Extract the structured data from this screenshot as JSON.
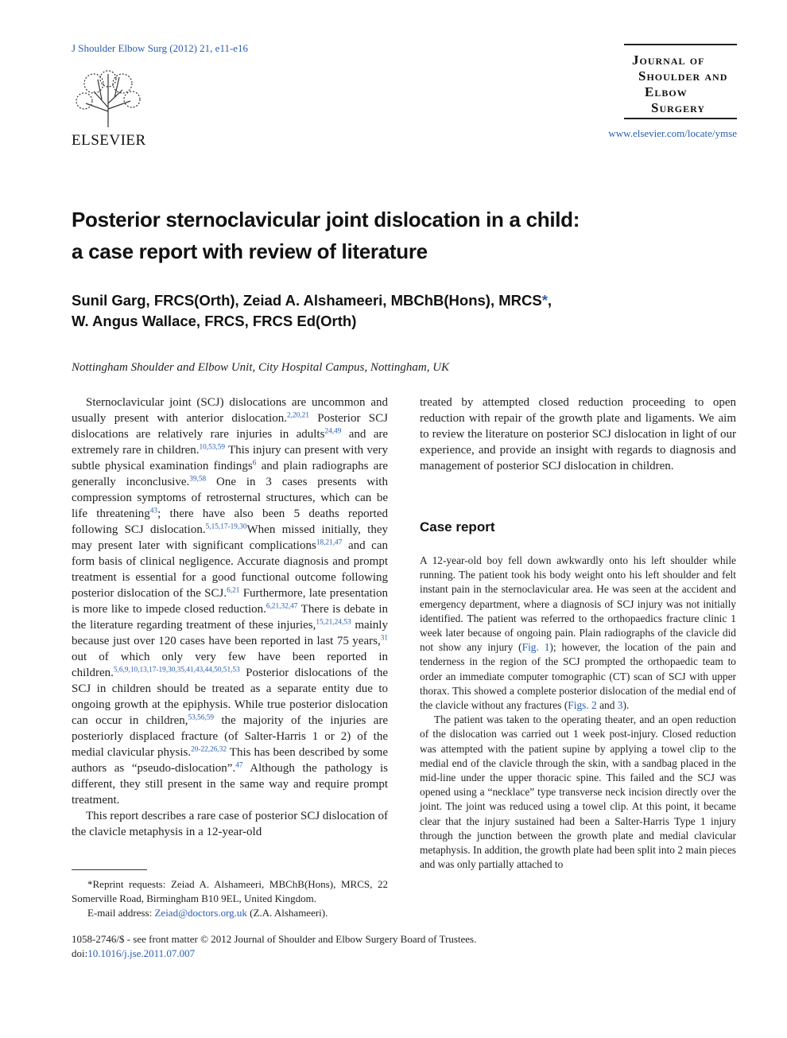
{
  "header": {
    "citation": "J Shoulder Elbow Surg (2012) 21, e11-e16",
    "publisher": "ELSEVIER",
    "journal": [
      "Journal of",
      "Shoulder and",
      "Elbow",
      "Surgery"
    ],
    "url": "www.elsevier.com/locate/ymse"
  },
  "title": [
    "Posterior sternoclavicular joint dislocation in a child:",
    "a case report with review of literature"
  ],
  "authors": [
    [
      "Sunil Garg, FRCS(Orth), Zeiad A. Alshameeri, MBChB(Hons), MRCS",
      {
        "link": "*"
      },
      ","
    ],
    [
      "W. Angus Wallace, FRCS, FRCS Ed(Orth)"
    ]
  ],
  "affiliation": "Nottingham Shoulder and Elbow Unit, City Hospital Campus, Nottingham, UK",
  "left": [
    [
      "Sternoclavicular joint (SCJ) dislocations are uncommon and usually present with anterior dislocation.",
      {
        "sup": "2,20,21"
      },
      " Posterior SCJ dislocations are relatively rare injuries in adults",
      {
        "sup": "24,49"
      },
      " and are extremely rare in children.",
      {
        "sup": "10,53,59"
      },
      " This injury can present with very subtle physical examination findings",
      {
        "sup": "6"
      },
      " and plain radiographs are generally inconclusive.",
      {
        "sup": "39,58"
      },
      " One in 3 cases presents with compression symptoms of retrosternal structures, which can be life threatening",
      {
        "sup": "43"
      },
      "; there have also been 5 deaths reported following SCJ dislocation.",
      {
        "sup": "5,15,17-19,30"
      },
      "When missed initially, they may present later with significant complications",
      {
        "sup": "18,21,47"
      },
      " and can form basis of clinical negligence. Accurate diagnosis and prompt treatment is essential for a good functional outcome following posterior dislocation of the SCJ.",
      {
        "sup": "6,21"
      },
      " Furthermore, late presentation is more like to impede closed reduction.",
      {
        "sup": "6,21,32,47"
      },
      " There is debate in the literature regarding treatment of these injuries,",
      {
        "sup": "15,21,24,53"
      },
      " mainly because just over 120 cases have been reported in last 75 years,",
      {
        "sup": "31"
      },
      " out of which only very few have been reported in children.",
      {
        "sup": "5,6,9,10,13,17-19,30,35,41,43,44,50,51,53"
      },
      " Posterior dislocations of the SCJ in children should be treated as a separate entity due to ongoing growth at the epiphysis. While true posterior dislocation can occur in children,",
      {
        "sup": "53,56,59"
      },
      " the majority of the injuries are posteriorly displaced fracture (of Salter-Harris 1 or 2) of the medial clavicular physis.",
      {
        "sup": "20-22,26,32"
      },
      " This has been described by some authors as “pseudo-dislocation”.",
      {
        "sup": "47"
      },
      " Although the pathology is different, they still present in the same way and require prompt treatment."
    ],
    [
      "This report describes a rare case of posterior SCJ dislocation of the clavicle metaphysis in a 12-year-old"
    ]
  ],
  "right": [
    [
      "treated by attempted closed reduction proceeding to open reduction with repair of the growth plate and ligaments. We aim to review the literature on posterior SCJ dislocation in light of our experience, and provide an insight with regards to diagnosis and management of posterior SCJ dislocation in children."
    ]
  ],
  "case_report": {
    "heading": "Case report",
    "paragraphs": [
      [
        "A 12-year-old boy fell down awkwardly onto his left shoulder while running. The patient took his body weight onto his left shoulder and felt instant pain in the sternoclavicular area. He was seen at the accident and emergency department, where a diagnosis of SCJ injury was not initially identified. The patient was referred to the orthopaedics fracture clinic 1 week later because of ongoing pain. Plain radiographs of the clavicle did not show any injury (",
        {
          "link": "Fig. 1"
        },
        "); however, the location of the pain and tenderness in the region of the SCJ prompted the orthopaedic team to order an immediate computer tomographic (CT) scan of SCJ with upper thorax. This showed a complete posterior dislocation of the medial end of the clavicle without any fractures (",
        {
          "link": "Figs. 2"
        },
        " and ",
        {
          "link": "3"
        },
        ")."
      ],
      [
        "The patient was taken to the operating theater, and an open reduction of the dislocation was carried out 1 week post-injury. Closed reduction was attempted with the patient supine by applying a towel clip to the medial end of the clavicle through the skin, with a sandbag placed in the mid-line under the upper thoracic spine. This failed and the SCJ was opened using a “necklace” type transverse neck incision directly over the joint. The joint was reduced using a towel clip. At this point, it became clear that the injury sustained had been a Salter-Harris Type 1 injury through the junction between the growth plate and medial clavicular metaphysis. In addition, the growth plate had been split into 2 main pieces and was only partially attached to"
      ]
    ]
  },
  "footnote": [
    [
      "*Reprint requests: Zeiad A. Alshameeri, MBChB(Hons), MRCS, 22 Somerville Road, Birmingham B10 9EL, United Kingdom."
    ],
    [
      "E-mail address: ",
      {
        "link": "Zeiad@doctors.org.uk"
      },
      " (Z.A. Alshameeri)."
    ]
  ],
  "footer": [
    [
      "1058-2746/$ - see front matter © 2012 Journal of Shoulder and Elbow Surgery Board of Trustees."
    ],
    [
      "doi:",
      {
        "link": "10.1016/j.jse.2011.07.007"
      }
    ]
  ]
}
